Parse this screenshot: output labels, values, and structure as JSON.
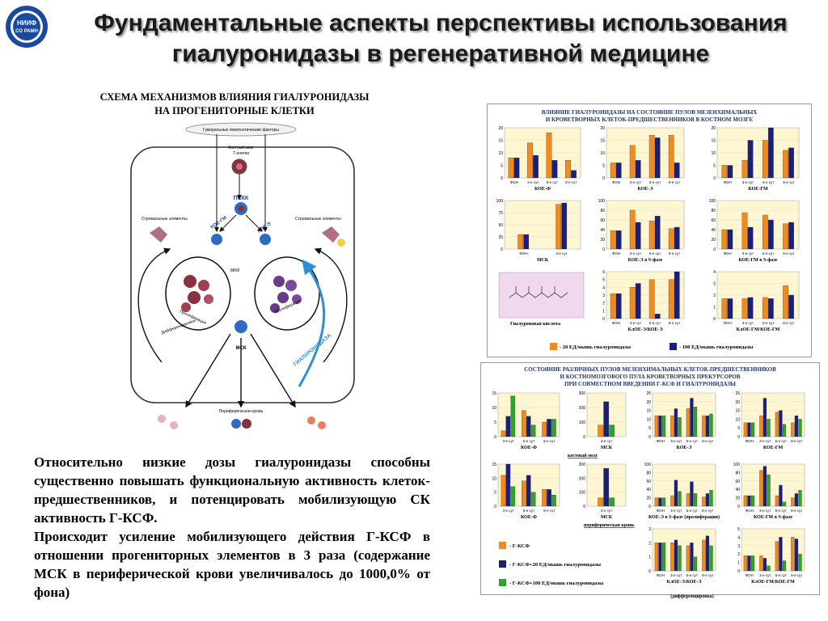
{
  "logo": {
    "line1": "НИИФ",
    "line2": "СО РАМН",
    "icon": "institute-logo-icon"
  },
  "title": {
    "line1": "Фундаментальные аспекты перспективы использования",
    "line2": "гиалуронидазы в регенеративной медицине"
  },
  "scheme": {
    "title_line1": "СХЕМА МЕХАНИЗМОВ ВЛИЯНИЯ ГИАЛУРОНИДАЗЫ",
    "title_line2": "НА ПРОГЕНИТОРНЫЕ КЛЕТКИ",
    "labels": {
      "humoral": "Гуморальные гемопоэтические факторы",
      "marrow": "Костный мозг",
      "tcells": "Т-клетки",
      "pskk": "ПСКК",
      "koe_gm": "КОЕ-ГМ",
      "koe_e": "КОЕ-Э",
      "stromal_left": "Стромальные элементы",
      "stromal_right": "Стромальные элементы",
      "mkm": "МКМ",
      "msk": "МСК",
      "hyaluronidase": "ГИАЛУРОНИДАЗА",
      "proliferation": "Пролиферация",
      "differentiation": "Дифференцировка",
      "peripheral": "Периферическая кровь"
    }
  },
  "main_text": {
    "para1": "Относительно низкие дозы гиалуронидазы способны существенно повышать функциональную активность клеток-предшественников, и потенцировать мобилизующую СК активность Г-КСФ.",
    "para2": "Происходит усиление мобилизующего действия Г-КСФ в отношении прогениторных элементов в 3 раза (содержание МСК в периферической крови увеличивалось до 1000,0% от фона)"
  },
  "panel1": {
    "title_line1": "ВЛИЯНИЕ ГИАЛУРОНИДАЗЫ НА СОСТОЯНИЕ ПУЛОВ МЕЗЕНХИМАЛЬНЫХ",
    "title_line2": "И КРОВЕТВОРНЫХ КЛЕТОК-ПРЕДШЕСТВЕННИКОВ В КОСТНОМ МОЗГЕ",
    "legend": [
      "- 20 ЕД/мышь гиалуронидазы",
      "- 100 ЕД/мышь гиалуронидазы"
    ],
    "hyaluronic_label": "Гиалуроновая кислота",
    "colors": {
      "orange": "#f28a1e",
      "navy": "#1c1f7a"
    }
  },
  "panel2": {
    "title_line1": "СОСТОЯНИЕ РАЗЛИЧНЫХ ПУЛОВ МЕЗЕНХИМАЛЬНЫХ КЛЕТОК-ПРЕДШЕСТВЕННИКОВ",
    "title_line2": "И КОСТНОМОЗГОВОГО ПУЛА КРОВЕТВОРНЫХ ПРЕКУРСОРОВ",
    "title_line3": "ПРИ СОВМЕСТНОМ ВВЕДЕНИИ Г-КСФ И ГИАЛУРОНИДАЗЫ",
    "section_marrow": "костный мозг",
    "section_blood": "периферическая кровь",
    "legend": [
      "- Г-КСФ",
      "- Г-КСФ+20 ЕД/мышь гиалуронидазы",
      "- Г-КСФ+100 ЕД/мышь гиалуронидазы"
    ],
    "colors": {
      "orange": "#f28a1e",
      "navy": "#1c1f7a",
      "green": "#2ea32e"
    }
  },
  "chart_data": [
    {
      "type": "bar",
      "chart": "p1-koe-f",
      "label": "КОЕ-Ф",
      "categories": [
        "ФОН",
        "3-е сут",
        "5-е сут",
        "8-е сут"
      ],
      "ylim": [
        0,
        20
      ],
      "ticks": [
        0,
        5,
        10,
        15,
        20
      ],
      "series": [
        {
          "values": [
            8,
            14,
            18,
            7
          ]
        },
        {
          "values": [
            8,
            9,
            7,
            3
          ]
        }
      ]
    },
    {
      "type": "bar",
      "chart": "p1-koe-e",
      "label": "КОЕ-Э",
      "categories": [
        "ФОН",
        "3-е сут",
        "5-е сут",
        "8-е сут"
      ],
      "ylim": [
        0,
        20
      ],
      "ticks": [
        0,
        5,
        10,
        15,
        20
      ],
      "series": [
        {
          "values": [
            6,
            13,
            17,
            17
          ]
        },
        {
          "values": [
            6,
            7,
            16,
            6
          ]
        }
      ]
    },
    {
      "type": "bar",
      "chart": "p1-koe-gm",
      "label": "КОЕ-ГМ",
      "categories": [
        "ФОН",
        "3-е сут",
        "5-е сут",
        "8-е сут"
      ],
      "ylim": [
        0,
        20
      ],
      "ticks": [
        0,
        5,
        10,
        15,
        20
      ],
      "series": [
        {
          "values": [
            5,
            7,
            15,
            11
          ]
        },
        {
          "values": [
            5,
            15,
            20,
            12
          ]
        }
      ]
    },
    {
      "type": "bar",
      "chart": "p1-msk",
      "label": "МСК",
      "categories": [
        "ФОН",
        "3-е сут"
      ],
      "ylim": [
        0,
        100
      ],
      "ticks": [
        0,
        25,
        50,
        75,
        100
      ],
      "series": [
        {
          "values": [
            30,
            92
          ]
        },
        {
          "values": [
            30,
            95
          ]
        }
      ]
    },
    {
      "type": "bar",
      "chart": "p1-koe-e-s",
      "label": "КОЕ-Э в S-фазе",
      "categories": [
        "ФОН",
        "3-е сут",
        "5-е сут",
        "8-е сут"
      ],
      "ylim": [
        0,
        100
      ],
      "ticks": [
        0,
        20,
        40,
        60,
        80,
        100
      ],
      "series": [
        {
          "values": [
            38,
            80,
            58,
            42
          ]
        },
        {
          "values": [
            38,
            55,
            68,
            45
          ]
        }
      ]
    },
    {
      "type": "bar",
      "chart": "p1-koe-gm-s",
      "label": "КОЕ-ГМ в S-фазе",
      "categories": [
        "ФОН",
        "3-е сут",
        "5-е сут",
        "8-е сут"
      ],
      "ylim": [
        0,
        100
      ],
      "ticks": [
        0,
        20,
        40,
        60,
        80,
        100
      ],
      "series": [
        {
          "values": [
            40,
            75,
            70,
            52
          ]
        },
        {
          "values": [
            40,
            45,
            60,
            55
          ]
        }
      ]
    },
    {
      "type": "bar",
      "chart": "p1-kloe-e",
      "label": "КлОЕ-Э/КОЕ-Э",
      "categories": [
        "ФОН",
        "3-е сут",
        "5-е сут",
        "8-е сут"
      ],
      "ylim": [
        0,
        6
      ],
      "ticks": [
        0,
        1,
        2,
        3,
        4,
        5,
        6
      ],
      "series": [
        {
          "values": [
            3.2,
            4,
            5,
            5
          ]
        },
        {
          "values": [
            3.2,
            4.5,
            0.6,
            6
          ]
        }
      ]
    },
    {
      "type": "bar",
      "chart": "p1-kloe-gm",
      "label": "КлОЕ-ГМ/КОЕ-ГМ",
      "categories": [
        "ФОН",
        "3-е сут",
        "5-е сут",
        "8-е сут"
      ],
      "ylim": [
        0,
        4
      ],
      "ticks": [
        0,
        1,
        2,
        3,
        4
      ],
      "series": [
        {
          "values": [
            1.7,
            1.7,
            1.8,
            2.8
          ]
        },
        {
          "values": [
            1.7,
            1.8,
            1.7,
            2
          ]
        }
      ]
    },
    {
      "type": "bar",
      "chart": "p2-koe-f",
      "label": "КОЕ-Ф",
      "categories": [
        "3-е сут",
        "5-е сут",
        "8-е сут"
      ],
      "ylim": [
        0,
        15
      ],
      "ticks": [
        0,
        5,
        10,
        15
      ],
      "series": [
        {
          "values": [
            2,
            9,
            5
          ]
        },
        {
          "values": [
            7,
            7,
            6
          ]
        },
        {
          "values": [
            14,
            4,
            6
          ]
        }
      ]
    },
    {
      "type": "bar",
      "chart": "p2-msk",
      "label": "МСК",
      "categories": [
        "3-е сут"
      ],
      "ylim": [
        0,
        300
      ],
      "ticks": [
        0,
        100,
        200,
        300
      ],
      "series": [
        {
          "values": [
            80
          ]
        },
        {
          "values": [
            240
          ]
        },
        {
          "values": [
            80
          ]
        }
      ]
    },
    {
      "type": "bar",
      "chart": "p2-koe-e",
      "label": "КОЕ-Э",
      "categories": [
        "ФОН",
        "3-е сут",
        "5-е сут",
        "8-е сут"
      ],
      "ylim": [
        0,
        25
      ],
      "ticks": [
        0,
        5,
        10,
        15,
        20,
        25
      ],
      "series": [
        {
          "values": [
            12,
            12,
            16,
            12
          ]
        },
        {
          "values": [
            12,
            16,
            22,
            12
          ]
        },
        {
          "values": [
            12,
            11,
            17,
            13
          ]
        }
      ]
    },
    {
      "type": "bar",
      "chart": "p2-koe-gm",
      "label": "КОЕ-ГМ",
      "categories": [
        "ФОН",
        "3-е сут",
        "5-е сут",
        "8-е сут"
      ],
      "ylim": [
        0,
        25
      ],
      "ticks": [
        0,
        5,
        10,
        15,
        20,
        25
      ],
      "series": [
        {
          "values": [
            8,
            12,
            14,
            8
          ]
        },
        {
          "values": [
            8,
            22,
            15,
            12
          ]
        },
        {
          "values": [
            8,
            10,
            7,
            10
          ]
        }
      ]
    },
    {
      "type": "bar",
      "chart": "p2-koe-f-blood",
      "label": "КОЕ-Ф",
      "categories": [
        "3-е сут",
        "5-е сут",
        "8-е сут"
      ],
      "ylim": [
        0,
        15
      ],
      "ticks": [
        0,
        5,
        10,
        15
      ],
      "series": [
        {
          "values": [
            11,
            9,
            6
          ]
        },
        {
          "values": [
            15,
            11,
            6
          ]
        },
        {
          "values": [
            7,
            5,
            4
          ]
        }
      ]
    },
    {
      "type": "bar",
      "chart": "p2-msk-blood",
      "label": "МСК",
      "categories": [
        "3-е сут"
      ],
      "ylim": [
        0,
        300
      ],
      "ticks": [
        0,
        100,
        200,
        300
      ],
      "series": [
        {
          "values": [
            60
          ]
        },
        {
          "values": [
            270
          ]
        },
        {
          "values": [
            60
          ]
        }
      ]
    },
    {
      "type": "bar",
      "chart": "p2-koe-e-s",
      "label": "КОЕ-Э в S-фазе (пролиферация)",
      "categories": [
        "ФОН",
        "3-е сут",
        "5-е сут",
        "8-е сут"
      ],
      "ylim": [
        0,
        100
      ],
      "ticks": [
        0,
        20,
        40,
        60,
        80,
        100
      ],
      "series": [
        {
          "values": [
            20,
            25,
            30,
            22
          ]
        },
        {
          "values": [
            20,
            62,
            58,
            30
          ]
        },
        {
          "values": [
            20,
            35,
            30,
            38
          ]
        }
      ]
    },
    {
      "type": "bar",
      "chart": "p2-koe-gm-s",
      "label": "КОЕ-ГМ в S-фазе",
      "categories": [
        "ФОН",
        "3-е сут",
        "5-е сут",
        "8-е сут"
      ],
      "ylim": [
        0,
        100
      ],
      "ticks": [
        0,
        20,
        40,
        60,
        80,
        100
      ],
      "series": [
        {
          "values": [
            25,
            85,
            25,
            20
          ]
        },
        {
          "values": [
            25,
            95,
            50,
            30
          ]
        },
        {
          "values": [
            25,
            75,
            10,
            38
          ]
        }
      ]
    },
    {
      "type": "bar",
      "chart": "p2-kloe-e",
      "label": "КлОЕ-Э/КОЕ-Э",
      "categories": [
        "ФОН",
        "3-е сут",
        "5-е сут",
        "8-е сут"
      ],
      "ylim": [
        0,
        3
      ],
      "ticks": [
        0,
        1,
        2,
        3
      ],
      "series": [
        {
          "values": [
            2,
            2,
            1.8,
            2.2
          ]
        },
        {
          "values": [
            2,
            2.2,
            2,
            2.5
          ]
        },
        {
          "values": [
            2,
            1.8,
            1,
            1.8
          ]
        }
      ]
    },
    {
      "type": "bar",
      "chart": "p2-kloe-gm",
      "label": "КлОЕ-ГМ/КОЕ-ГМ",
      "categories": [
        "ФОН",
        "3-е сут",
        "5-е сут",
        "8-е сут"
      ],
      "ylim": [
        0,
        5
      ],
      "ticks": [
        0,
        1,
        2,
        3,
        4,
        5
      ],
      "series": [
        {
          "values": [
            1.8,
            1.8,
            3.5,
            4
          ]
        },
        {
          "values": [
            1.8,
            1.5,
            4,
            3.8
          ]
        },
        {
          "values": [
            1.8,
            0.6,
            1.2,
            2
          ]
        }
      ]
    }
  ],
  "chart_captions": {
    "p2_kloe_e_sub": "(дифференцировка)"
  }
}
